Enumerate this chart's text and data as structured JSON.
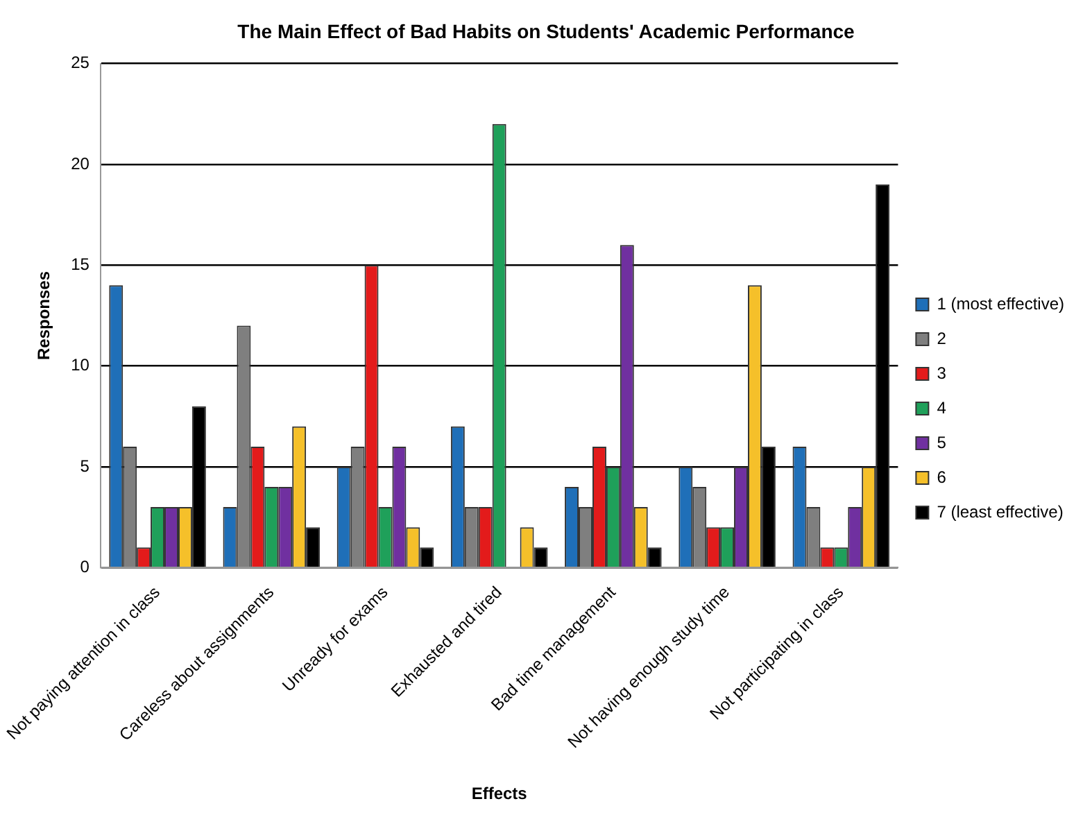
{
  "chart_data": {
    "type": "bar",
    "title": "The Main Effect of Bad Habits on Students' Academic Performance",
    "xlabel": "Effects",
    "ylabel": "Responses",
    "categories": [
      "Not paying attention in class",
      "Careless about assignments",
      "Unready for exams",
      "Exhausted and tired",
      "Bad time management",
      "Not having enough study time",
      "Not participating in class"
    ],
    "series": [
      {
        "name": "1 (most effective)",
        "color": "#1f6fb8",
        "values": [
          14,
          3,
          5,
          7,
          4,
          5,
          6
        ]
      },
      {
        "name": "2",
        "color": "#7f7f7f",
        "values": [
          6,
          12,
          6,
          3,
          3,
          4,
          3
        ]
      },
      {
        "name": "3",
        "color": "#e31b1b",
        "values": [
          1,
          6,
          15,
          3,
          6,
          2,
          1
        ]
      },
      {
        "name": "4",
        "color": "#1fa05a",
        "values": [
          3,
          4,
          3,
          22,
          5,
          2,
          1
        ]
      },
      {
        "name": "5",
        "color": "#7030a0",
        "values": [
          3,
          4,
          6,
          0,
          16,
          5,
          3
        ]
      },
      {
        "name": "6",
        "color": "#f5c02a",
        "values": [
          3,
          7,
          2,
          2,
          3,
          14,
          5
        ]
      },
      {
        "name": "7 (least effective)",
        "color": "#000000",
        "values": [
          8,
          2,
          1,
          1,
          1,
          6,
          19
        ]
      }
    ],
    "ylim": [
      0,
      25
    ],
    "yticks": [
      0,
      5,
      10,
      15,
      20,
      25
    ],
    "grid": "y",
    "legend": "right"
  }
}
